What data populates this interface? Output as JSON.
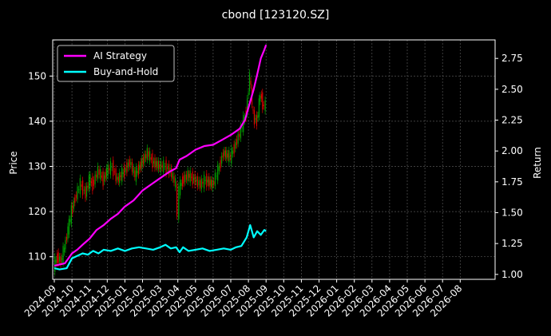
{
  "chart_data": {
    "type": "line",
    "title": "cbond [123120.SZ]",
    "ylabel_left": "Price",
    "ylabel_right": "Return",
    "ylim_left": [
      105,
      158
    ],
    "ylim_right": [
      0.96,
      2.9
    ],
    "yticks_left": [
      "110",
      "120",
      "130",
      "140",
      "150"
    ],
    "yticks_right": [
      "1.00",
      "1.25",
      "1.50",
      "1.75",
      "2.00",
      "2.25",
      "2.50",
      "2.75"
    ],
    "xticks": [
      "2024-09",
      "2024-10",
      "2024-11",
      "2024-12",
      "2025-01",
      "2025-02",
      "2025-03",
      "2025-04",
      "2025-05",
      "2025-06",
      "2025-07",
      "2025-08",
      "2025-09",
      "2025-10",
      "2025-11",
      "2025-12",
      "2026-01",
      "2026-02",
      "2026-03",
      "2026-04",
      "2026-05",
      "2026-06",
      "2026-07",
      "2026-08"
    ],
    "grid": true,
    "legend_position": "top-left",
    "colors": {
      "ai": "#ff00ff",
      "bh": "#00ffff",
      "up": "#00a000",
      "down": "#e00000"
    },
    "series": [
      {
        "name": "AI Strategy",
        "axis": "right",
        "x": [
          0.0,
          0.3,
          0.6,
          0.8,
          1.0,
          1.3,
          1.6,
          2.0,
          2.4,
          2.8,
          3.2,
          3.6,
          4.0,
          4.5,
          5.0,
          5.5,
          6.0,
          6.5,
          6.9,
          7.1,
          7.5,
          8.0,
          8.5,
          9.0,
          9.5,
          10.0,
          10.5,
          10.8,
          11.0,
          11.3,
          11.5,
          11.7,
          11.9,
          12.0
        ],
        "y": [
          1.07,
          1.08,
          1.09,
          1.13,
          1.17,
          1.2,
          1.24,
          1.29,
          1.36,
          1.4,
          1.45,
          1.49,
          1.55,
          1.6,
          1.68,
          1.73,
          1.78,
          1.83,
          1.86,
          1.93,
          1.96,
          2.01,
          2.04,
          2.05,
          2.09,
          2.13,
          2.18,
          2.25,
          2.35,
          2.5,
          2.62,
          2.75,
          2.82,
          2.86
        ]
      },
      {
        "name": "Buy-and-Hold",
        "axis": "right",
        "x": [
          0.0,
          0.3,
          0.7,
          1.0,
          1.3,
          1.6,
          1.9,
          2.2,
          2.5,
          2.8,
          3.2,
          3.6,
          4.0,
          4.4,
          4.8,
          5.2,
          5.6,
          6.0,
          6.3,
          6.6,
          6.9,
          7.1,
          7.3,
          7.6,
          8.0,
          8.4,
          8.8,
          9.2,
          9.6,
          10.0,
          10.3,
          10.6,
          10.9,
          11.1,
          11.3,
          11.5,
          11.7,
          11.9,
          12.0
        ],
        "y": [
          1.05,
          1.04,
          1.05,
          1.13,
          1.15,
          1.17,
          1.16,
          1.19,
          1.17,
          1.2,
          1.19,
          1.21,
          1.19,
          1.21,
          1.22,
          1.21,
          1.2,
          1.22,
          1.24,
          1.21,
          1.22,
          1.18,
          1.22,
          1.19,
          1.2,
          1.21,
          1.19,
          1.2,
          1.21,
          1.2,
          1.22,
          1.23,
          1.3,
          1.4,
          1.3,
          1.35,
          1.32,
          1.36,
          1.35
        ]
      },
      {
        "name": "Price",
        "axis": "left",
        "x": [
          0.0,
          0.2,
          0.4,
          0.6,
          0.8,
          1.0,
          1.2,
          1.5,
          1.8,
          2.0,
          2.2,
          2.5,
          2.8,
          3.0,
          3.3,
          3.6,
          4.0,
          4.3,
          4.6,
          5.0,
          5.3,
          5.6,
          6.0,
          6.3,
          6.6,
          6.9,
          7.0,
          7.1,
          7.3,
          7.6,
          8.0,
          8.3,
          8.6,
          9.0,
          9.3,
          9.6,
          10.0,
          10.3,
          10.6,
          10.9,
          11.1,
          11.3,
          11.5,
          11.7,
          11.9,
          12.0
        ],
        "y": [
          108,
          110,
          109,
          112,
          116,
          120,
          123,
          126,
          124,
          127,
          126,
          129,
          127,
          129,
          130,
          127,
          129,
          131,
          128,
          131,
          133,
          131,
          130,
          130,
          129,
          126,
          119,
          125,
          127,
          128,
          127,
          126,
          127,
          126,
          129,
          133,
          132,
          135,
          138,
          142,
          150,
          141,
          140,
          146,
          143,
          144
        ]
      }
    ]
  },
  "legend": {
    "ai_label": "AI Strategy",
    "bh_label": "Buy-and-Hold"
  }
}
